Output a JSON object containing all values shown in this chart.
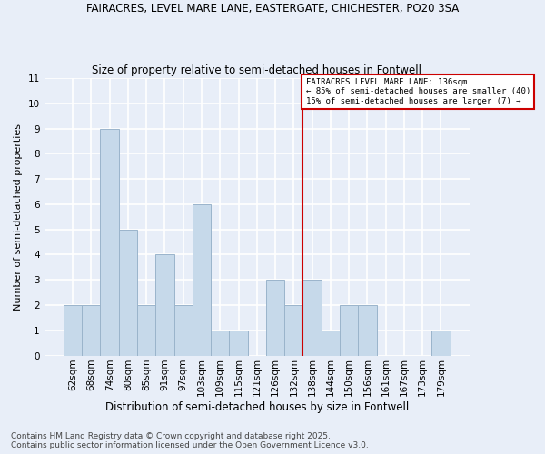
{
  "title1": "FAIRACRES, LEVEL MARE LANE, EASTERGATE, CHICHESTER, PO20 3SA",
  "title2": "Size of property relative to semi-detached houses in Fontwell",
  "xlabel": "Distribution of semi-detached houses by size in Fontwell",
  "ylabel": "Number of semi-detached properties",
  "categories": [
    "62sqm",
    "68sqm",
    "74sqm",
    "80sqm",
    "85sqm",
    "91sqm",
    "97sqm",
    "103sqm",
    "109sqm",
    "115sqm",
    "121sqm",
    "126sqm",
    "132sqm",
    "138sqm",
    "144sqm",
    "150sqm",
    "156sqm",
    "161sqm",
    "167sqm",
    "173sqm",
    "179sqm"
  ],
  "values": [
    2,
    2,
    9,
    5,
    2,
    4,
    2,
    6,
    1,
    1,
    0,
    3,
    2,
    3,
    1,
    2,
    2,
    0,
    0,
    0,
    1
  ],
  "bar_color": "#c6d9ea",
  "bar_edge_color": "#9ab4cb",
  "background_color": "#e8eef8",
  "grid_color": "#ffffff",
  "vline_index": 13,
  "vline_color": "#cc0000",
  "annotation_title": "FAIRACRES LEVEL MARE LANE: 136sqm",
  "annotation_line1": "← 85% of semi-detached houses are smaller (40)",
  "annotation_line2": "15% of semi-detached houses are larger (7) →",
  "annotation_box_color": "#ffffff",
  "annotation_box_edge": "#cc0000",
  "ylim": [
    0,
    11
  ],
  "yticks": [
    0,
    1,
    2,
    3,
    4,
    5,
    6,
    7,
    8,
    9,
    10,
    11
  ],
  "footnote1": "Contains HM Land Registry data © Crown copyright and database right 2025.",
  "footnote2": "Contains public sector information licensed under the Open Government Licence v3.0.",
  "title1_fontsize": 8.5,
  "title2_fontsize": 8.5,
  "ylabel_fontsize": 8,
  "xlabel_fontsize": 8.5,
  "tick_fontsize": 7.5,
  "footnote_fontsize": 6.5
}
